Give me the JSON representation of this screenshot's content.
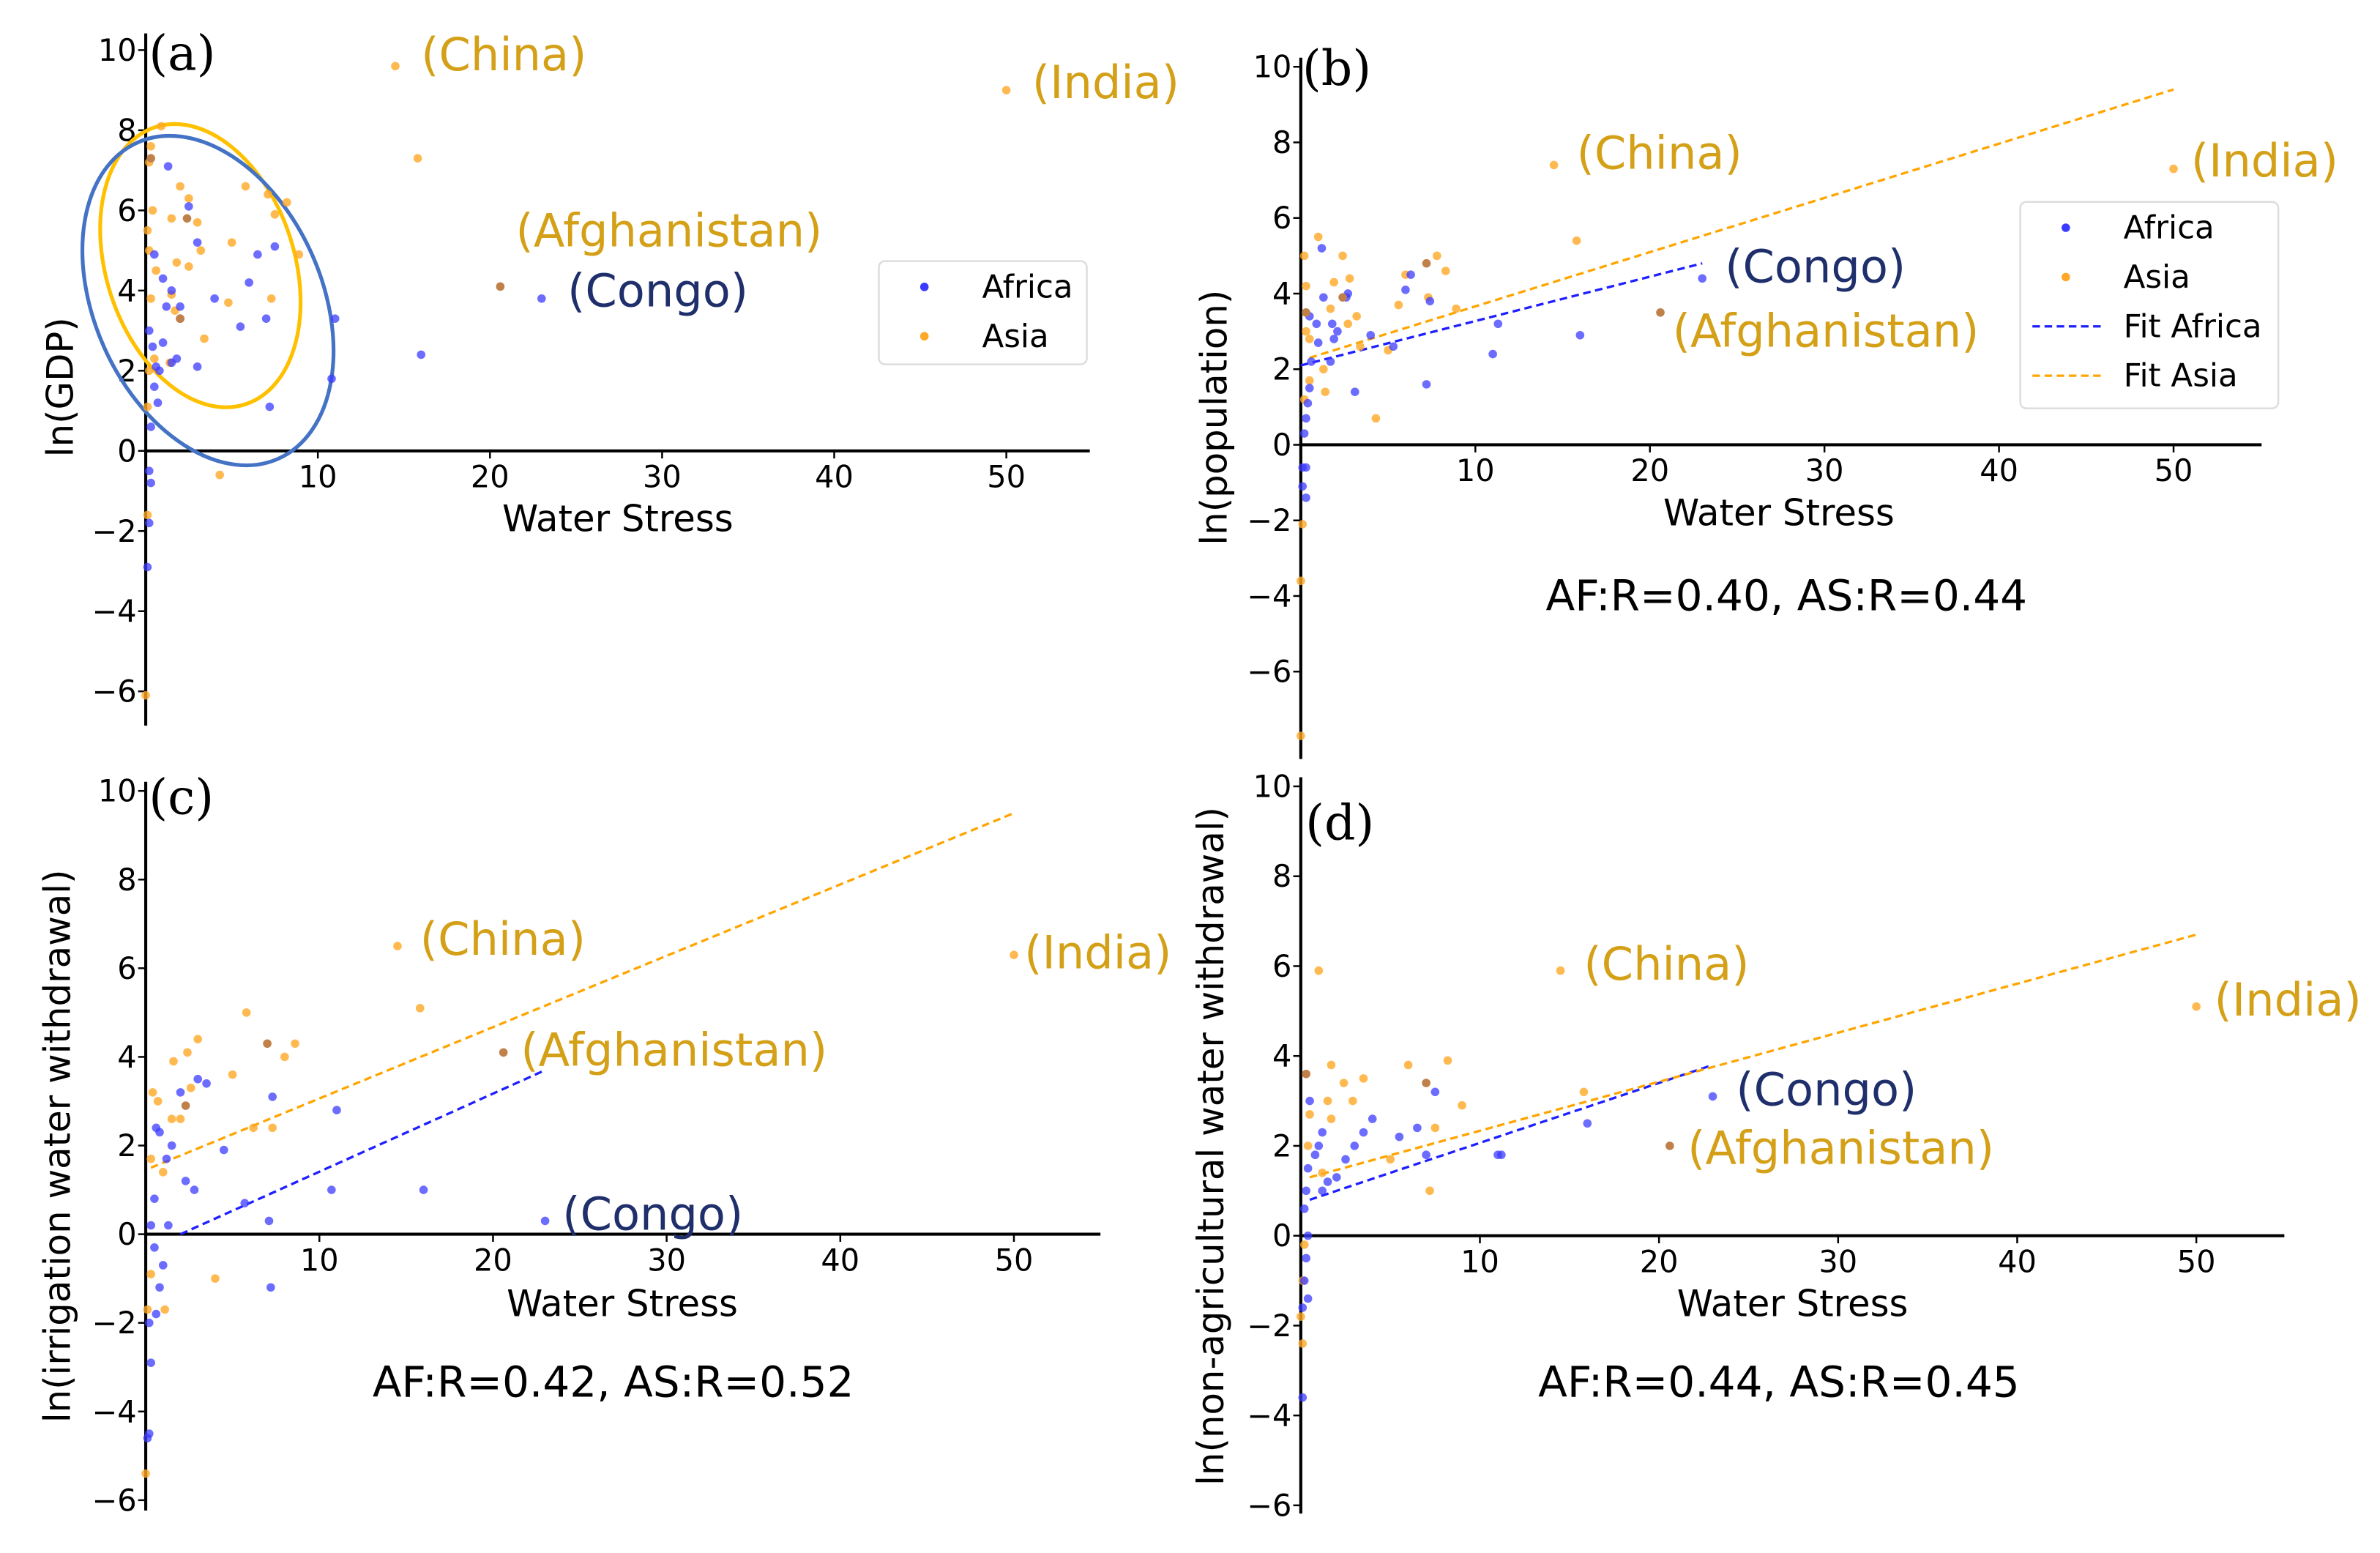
{
  "colors": {
    "africa": "#3b3bff",
    "asia": "#ffa726",
    "overlap": "#c0804a",
    "label_asia": "#d4a017",
    "label_africa": "#1f2f6b",
    "fit_africa": "#1f1fff",
    "fit_asia": "#ffa500",
    "ellipse_asia": "#ffc000",
    "ellipse_africa": "#4472c4"
  },
  "chart_data": [
    {
      "type": "scatter",
      "panel": "(a)",
      "xlabel": "Water Stress",
      "ylabel": "ln(GDP)",
      "xlim": [
        0,
        55
      ],
      "ylim": [
        -7,
        10.5
      ],
      "xticks": [
        "10",
        "20",
        "30",
        "40",
        "50"
      ],
      "xtick_values": [
        10,
        20,
        30,
        40,
        50
      ],
      "yticks": [
        "10",
        "8",
        "6",
        "4",
        "2",
        "0",
        "−2",
        "−4",
        "−6"
      ],
      "ytick_values": [
        10,
        8,
        6,
        4,
        2,
        0,
        -2,
        -4,
        -6
      ],
      "legend": {
        "placement": "right",
        "entries": [
          "Africa",
          "Asia"
        ]
      },
      "stat": "",
      "africa": [
        [
          0.5,
          4.9
        ],
        [
          1,
          4.3
        ],
        [
          1.5,
          4.0
        ],
        [
          1.2,
          3.6
        ],
        [
          2,
          3.3
        ],
        [
          3,
          5.2
        ],
        [
          2.5,
          6.1
        ],
        [
          1.3,
          7.1
        ],
        [
          4,
          3.8
        ],
        [
          5.5,
          3.1
        ],
        [
          6,
          4.2
        ],
        [
          6.5,
          4.9
        ],
        [
          7,
          3.3
        ],
        [
          7.5,
          5.1
        ],
        [
          7.2,
          1.1
        ],
        [
          11,
          3.3
        ],
        [
          10.8,
          1.8
        ],
        [
          16,
          2.4
        ],
        [
          23,
          3.8
        ],
        [
          3,
          2.1
        ],
        [
          1.5,
          2.2
        ],
        [
          0.8,
          2.0
        ],
        [
          0.5,
          1.6
        ],
        [
          0.7,
          1.2
        ],
        [
          0.3,
          0.6
        ],
        [
          0.2,
          -0.5
        ],
        [
          0.3,
          -0.8
        ],
        [
          0.2,
          -1.8
        ],
        [
          0.1,
          -2.9
        ],
        [
          0.4,
          2.6
        ],
        [
          0.2,
          3.0
        ],
        [
          1.0,
          2.7
        ],
        [
          1.8,
          2.3
        ],
        [
          0.6,
          2.1
        ],
        [
          2.0,
          3.6
        ]
      ],
      "asia": [
        [
          14.5,
          9.6
        ],
        [
          50,
          9.0
        ],
        [
          15.8,
          7.3
        ],
        [
          0.9,
          8.1
        ],
        [
          0.3,
          7.6
        ],
        [
          0.2,
          7.2
        ],
        [
          2,
          6.6
        ],
        [
          2.5,
          6.3
        ],
        [
          5.8,
          6.6
        ],
        [
          7.1,
          6.4
        ],
        [
          8.2,
          6.2
        ],
        [
          7.5,
          5.9
        ],
        [
          1.5,
          5.8
        ],
        [
          3,
          5.7
        ],
        [
          5,
          5.2
        ],
        [
          3.2,
          5.0
        ],
        [
          2.5,
          4.6
        ],
        [
          1.8,
          4.7
        ],
        [
          0.6,
          4.5
        ],
        [
          8.9,
          4.9
        ],
        [
          7.3,
          3.8
        ],
        [
          4.8,
          3.7
        ],
        [
          1.5,
          3.9
        ],
        [
          1.7,
          3.5
        ],
        [
          3.4,
          2.8
        ],
        [
          2.0,
          3.3
        ],
        [
          0.3,
          3.8
        ],
        [
          0.1,
          5.5
        ],
        [
          0.2,
          5.0
        ],
        [
          0.5,
          2.3
        ],
        [
          1.4,
          2.2
        ],
        [
          0.2,
          2.0
        ],
        [
          0.1,
          1.1
        ],
        [
          4.3,
          -0.6
        ],
        [
          0.1,
          -1.6
        ],
        [
          0,
          -6.1
        ],
        [
          0.4,
          6.0
        ]
      ],
      "overlap": [
        [
          20.6,
          4.1
        ],
        [
          2.4,
          5.8
        ],
        [
          0.3,
          7.3
        ],
        [
          2,
          3.3
        ]
      ],
      "fits": [],
      "annotations": [
        {
          "text": "(China)",
          "group": "asia",
          "x": 16,
          "y": 9.5
        },
        {
          "text": "(India)",
          "group": "asia",
          "x": 51.5,
          "y": 8.8
        },
        {
          "text": "(Afghanistan)",
          "group": "asia",
          "x": 21.5,
          "y": 5.1
        },
        {
          "text": "(Congo)",
          "group": "africa",
          "x": 24.5,
          "y": 3.6
        }
      ]
    },
    {
      "type": "scatter",
      "panel": "(b)",
      "xlabel": "Water Stress",
      "ylabel": "ln(population)",
      "xlim": [
        0,
        55
      ],
      "ylim": [
        -8.3,
        10.2
      ],
      "xticks": [
        "10",
        "20",
        "30",
        "40",
        "50"
      ],
      "xtick_values": [
        10,
        20,
        30,
        40,
        50
      ],
      "yticks": [
        "10",
        "8",
        "6",
        "4",
        "2",
        "0",
        "−2",
        "−4",
        "−6"
      ],
      "ytick_values": [
        10,
        8,
        6,
        4,
        2,
        0,
        -2,
        -4,
        -6
      ],
      "legend": {
        "placement": "right",
        "entries": [
          "Africa",
          "Asia",
          "Fit Africa",
          "Fit Asia"
        ]
      },
      "stat": "AF:R=0.40, AS:R=0.44",
      "africa": [
        [
          23,
          4.4
        ],
        [
          16,
          2.9
        ],
        [
          11,
          2.4
        ],
        [
          11.3,
          3.2
        ],
        [
          7.4,
          3.8
        ],
        [
          7.2,
          1.6
        ],
        [
          6.3,
          4.5
        ],
        [
          6.0,
          4.1
        ],
        [
          5.3,
          2.6
        ],
        [
          4,
          2.9
        ],
        [
          3.1,
          1.4
        ],
        [
          2.7,
          4.0
        ],
        [
          2.6,
          3.9
        ],
        [
          2.1,
          3.0
        ],
        [
          1.8,
          3.2
        ],
        [
          1.2,
          5.2
        ],
        [
          1.3,
          3.9
        ],
        [
          1,
          2.7
        ],
        [
          0.9,
          3.2
        ],
        [
          0.5,
          3.4
        ],
        [
          0.6,
          2.2
        ],
        [
          0.5,
          1.5
        ],
        [
          0.4,
          1.1
        ],
        [
          0.3,
          0.7
        ],
        [
          0.2,
          0.3
        ],
        [
          0.1,
          -0.6
        ],
        [
          0.3,
          -0.6
        ],
        [
          0.1,
          -1.1
        ],
        [
          0.3,
          -1.4
        ],
        [
          1.7,
          2.2
        ],
        [
          1.9,
          2.8
        ]
      ],
      "asia": [
        [
          14.5,
          7.4
        ],
        [
          50,
          7.3
        ],
        [
          15.8,
          5.4
        ],
        [
          7.8,
          5.0
        ],
        [
          8.3,
          4.6
        ],
        [
          6,
          4.5
        ],
        [
          5.6,
          3.7
        ],
        [
          8.9,
          3.6
        ],
        [
          7.3,
          3.9
        ],
        [
          1,
          5.5
        ],
        [
          0.2,
          5.0
        ],
        [
          2.4,
          5.0
        ],
        [
          0.3,
          4.2
        ],
        [
          2.8,
          4.4
        ],
        [
          1.9,
          4.3
        ],
        [
          3.2,
          3.4
        ],
        [
          1.7,
          3.6
        ],
        [
          2.7,
          3.2
        ],
        [
          4.3,
          0.7
        ],
        [
          3.4,
          2.6
        ],
        [
          5,
          2.5
        ],
        [
          1.3,
          2.0
        ],
        [
          0.5,
          1.7
        ],
        [
          0.2,
          1.2
        ],
        [
          1.4,
          1.4
        ],
        [
          0.1,
          -2.1
        ],
        [
          0,
          -3.6
        ],
        [
          0,
          -7.7
        ],
        [
          0.5,
          2.8
        ],
        [
          0.3,
          3.0
        ]
      ],
      "overlap": [
        [
          20.6,
          3.5
        ],
        [
          7.2,
          4.8
        ],
        [
          2.4,
          3.9
        ],
        [
          0.3,
          3.5
        ]
      ],
      "fits": [
        {
          "group": "africa",
          "x": [
            0,
            23
          ],
          "y": [
            2.1,
            4.8
          ]
        },
        {
          "group": "asia",
          "x": [
            0.5,
            50
          ],
          "y": [
            2.3,
            9.4
          ]
        }
      ],
      "annotations": [
        {
          "text": "(China)",
          "group": "asia",
          "x": 15.8,
          "y": 7.3
        },
        {
          "text": "(India)",
          "group": "asia",
          "x": 51,
          "y": 7.1
        },
        {
          "text": "(Congo)",
          "group": "africa",
          "x": 24.3,
          "y": 4.3
        },
        {
          "text": "(Afghanistan)",
          "group": "asia",
          "x": 21.3,
          "y": 2.6
        }
      ]
    },
    {
      "type": "scatter",
      "panel": "(c)",
      "xlabel": "Water Stress",
      "ylabel": "ln(irrigation water withdrawal)",
      "xlim": [
        0,
        55
      ],
      "ylim": [
        -6.2,
        10.2
      ],
      "xticks": [
        "10",
        "20",
        "30",
        "40",
        "50"
      ],
      "xtick_values": [
        10,
        20,
        30,
        40,
        50
      ],
      "yticks": [
        "10",
        "8",
        "6",
        "4",
        "2",
        "0",
        "−2",
        "−4",
        "−6"
      ],
      "ytick_values": [
        10,
        8,
        6,
        4,
        2,
        0,
        -2,
        -4,
        -6
      ],
      "legend": null,
      "stat": "AF:R=0.42, AS:R=0.52",
      "africa": [
        [
          23,
          0.3
        ],
        [
          16,
          1.0
        ],
        [
          11,
          2.8
        ],
        [
          10.7,
          1.0
        ],
        [
          7.3,
          3.1
        ],
        [
          7.1,
          0.3
        ],
        [
          7.2,
          -1.2
        ],
        [
          5.7,
          0.7
        ],
        [
          4.5,
          1.9
        ],
        [
          3.5,
          3.4
        ],
        [
          3,
          3.5
        ],
        [
          2.8,
          1.0
        ],
        [
          2.3,
          1.2
        ],
        [
          2,
          3.2
        ],
        [
          1.5,
          2.0
        ],
        [
          1.2,
          1.7
        ],
        [
          0.6,
          2.4
        ],
        [
          0.8,
          2.3
        ],
        [
          0.5,
          0.8
        ],
        [
          0.3,
          0.2
        ],
        [
          0.5,
          -0.3
        ],
        [
          1,
          -0.7
        ],
        [
          0.8,
          -1.2
        ],
        [
          0.6,
          -1.8
        ],
        [
          0.2,
          -2.0
        ],
        [
          0.3,
          -2.9
        ],
        [
          0.1,
          -4.6
        ],
        [
          0.2,
          -4.5
        ],
        [
          1.3,
          0.2
        ]
      ],
      "asia": [
        [
          14.5,
          6.5
        ],
        [
          50,
          6.3
        ],
        [
          15.8,
          5.1
        ],
        [
          5.8,
          5.0
        ],
        [
          8.6,
          4.3
        ],
        [
          8,
          4.0
        ],
        [
          3,
          4.4
        ],
        [
          2.4,
          4.1
        ],
        [
          5,
          3.6
        ],
        [
          1.6,
          3.9
        ],
        [
          2.6,
          3.3
        ],
        [
          0.7,
          3.0
        ],
        [
          0.4,
          3.2
        ],
        [
          1.5,
          2.6
        ],
        [
          2,
          2.6
        ],
        [
          6.2,
          2.4
        ],
        [
          7.3,
          2.4
        ],
        [
          0.3,
          1.7
        ],
        [
          1,
          1.4
        ],
        [
          4,
          -1.0
        ],
        [
          1.1,
          -1.7
        ],
        [
          0.3,
          -0.9
        ],
        [
          0.1,
          -1.7
        ],
        [
          0,
          -5.4
        ]
      ],
      "overlap": [
        [
          20.6,
          4.1
        ],
        [
          7,
          4.3
        ],
        [
          2.3,
          2.9
        ]
      ],
      "fits": [
        {
          "group": "africa",
          "x": [
            2,
            23
          ],
          "y": [
            0,
            3.7
          ]
        },
        {
          "group": "asia",
          "x": [
            0.3,
            50
          ],
          "y": [
            1.5,
            9.5
          ]
        }
      ],
      "annotations": [
        {
          "text": "(China)",
          "group": "asia",
          "x": 15.8,
          "y": 6.3
        },
        {
          "text": "(India)",
          "group": "asia",
          "x": 50.6,
          "y": 6.0
        },
        {
          "text": "(Afghanistan)",
          "group": "asia",
          "x": 21.6,
          "y": 3.8
        },
        {
          "text": "(Congo)",
          "group": "africa",
          "x": 24,
          "y": 0.1
        }
      ]
    },
    {
      "type": "scatter",
      "panel": "(d)",
      "xlabel": "Water Stress",
      "ylabel": "ln(non-agricultural water withdrawal)",
      "xlim": [
        0,
        55
      ],
      "ylim": [
        -6.2,
        10.2
      ],
      "xticks": [
        "10",
        "20",
        "30",
        "40",
        "50"
      ],
      "xtick_values": [
        10,
        20,
        30,
        40,
        50
      ],
      "yticks": [
        "10",
        "8",
        "6",
        "4",
        "2",
        "0",
        "−2",
        "−4",
        "−6"
      ],
      "ytick_values": [
        10,
        8,
        6,
        4,
        2,
        0,
        -2,
        -4,
        -6
      ],
      "legend": null,
      "stat": "AF:R=0.44, AS:R=0.45",
      "africa": [
        [
          23,
          3.1
        ],
        [
          16,
          2.5
        ],
        [
          11,
          1.8
        ],
        [
          11.2,
          1.8
        ],
        [
          7.5,
          3.2
        ],
        [
          7,
          1.8
        ],
        [
          6.5,
          2.4
        ],
        [
          5.5,
          2.2
        ],
        [
          4,
          2.6
        ],
        [
          3.5,
          2.3
        ],
        [
          3,
          2.0
        ],
        [
          2.5,
          1.7
        ],
        [
          2,
          1.3
        ],
        [
          1.5,
          1.2
        ],
        [
          1.2,
          2.3
        ],
        [
          1,
          2.0
        ],
        [
          0.8,
          1.8
        ],
        [
          0.5,
          3.0
        ],
        [
          0.4,
          1.5
        ],
        [
          0.3,
          1.0
        ],
        [
          0.2,
          0.6
        ],
        [
          0.4,
          0.0
        ],
        [
          0.3,
          -0.5
        ],
        [
          0.2,
          -1.0
        ],
        [
          0.4,
          -1.4
        ],
        [
          0.1,
          -1.6
        ],
        [
          0.1,
          -3.6
        ],
        [
          1.2,
          1.0
        ]
      ],
      "asia": [
        [
          14.5,
          5.9
        ],
        [
          50,
          5.1
        ],
        [
          1,
          5.9
        ],
        [
          15.8,
          3.2
        ],
        [
          6,
          3.8
        ],
        [
          8.2,
          3.9
        ],
        [
          9,
          2.9
        ],
        [
          7.5,
          2.4
        ],
        [
          7.2,
          1.0
        ],
        [
          1.7,
          3.8
        ],
        [
          2.4,
          3.4
        ],
        [
          3.5,
          3.5
        ],
        [
          1.5,
          3.0
        ],
        [
          2.9,
          3.0
        ],
        [
          0.5,
          2.7
        ],
        [
          1.7,
          2.6
        ],
        [
          0.4,
          2.0
        ],
        [
          1.2,
          1.4
        ],
        [
          5,
          1.7
        ],
        [
          0.2,
          -0.2
        ],
        [
          0.1,
          -1.0
        ],
        [
          0,
          -1.8
        ],
        [
          0.1,
          -2.4
        ]
      ],
      "overlap": [
        [
          20.6,
          2.0
        ],
        [
          7,
          3.4
        ],
        [
          0.3,
          3.6
        ]
      ],
      "fits": [
        {
          "group": "africa",
          "x": [
            0.5,
            23
          ],
          "y": [
            0.8,
            3.8
          ]
        },
        {
          "group": "asia",
          "x": [
            0.5,
            50
          ],
          "y": [
            1.3,
            6.7
          ]
        }
      ],
      "annotations": [
        {
          "text": "(China)",
          "group": "asia",
          "x": 15.8,
          "y": 5.7
        },
        {
          "text": "(India)",
          "group": "asia",
          "x": 51,
          "y": 4.9
        },
        {
          "text": "(Congo)",
          "group": "africa",
          "x": 24.3,
          "y": 2.9
        },
        {
          "text": "(Afghanistan)",
          "group": "asia",
          "x": 21.6,
          "y": 1.6
        }
      ]
    }
  ]
}
